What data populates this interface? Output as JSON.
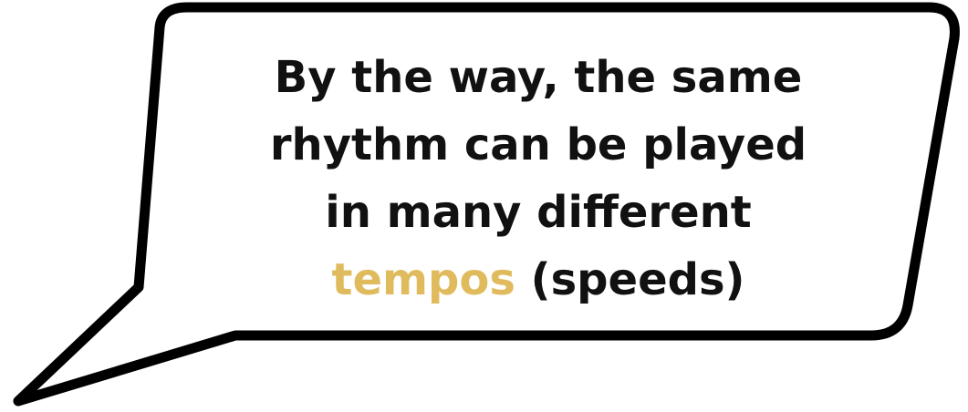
{
  "speech_bubble": {
    "lines": [
      "By the way, the same",
      "rhythm can be played",
      "in many different"
    ],
    "last_line": {
      "highlight": "tempos",
      "rest": "(speeds)"
    }
  },
  "colors": {
    "outline": "#000000",
    "fill": "#ffffff",
    "text": "#111111",
    "highlight": "#e0bb5e"
  }
}
